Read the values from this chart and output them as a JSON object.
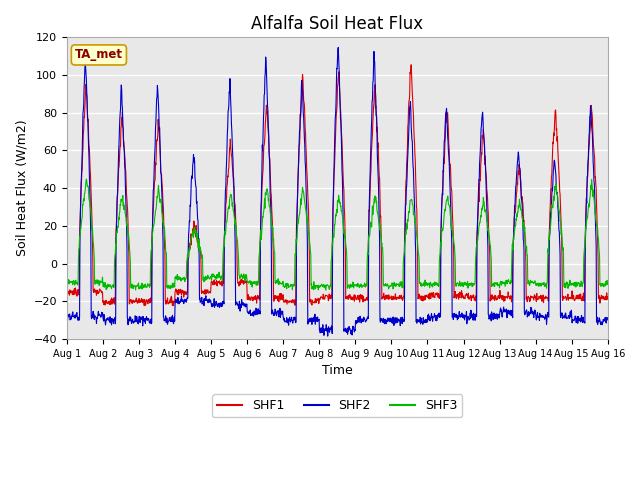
{
  "title": "Alfalfa Soil Heat Flux",
  "xlabel": "Time",
  "ylabel": "Soil Heat Flux (W/m2)",
  "ylim": [
    -40,
    120
  ],
  "background_color": "#ffffff",
  "plot_bg_color": "#e8e8e8",
  "colors": {
    "SHF1": "#dd0000",
    "SHF2": "#0000cc",
    "SHF3": "#00bb00"
  },
  "tick_labels": [
    "Aug 1",
    "Aug 2",
    "Aug 3",
    "Aug 4",
    "Aug 5",
    "Aug 6",
    "Aug 7",
    "Aug 8",
    "Aug 9",
    "Aug 10",
    "Aug 11",
    "Aug 12",
    "Aug 13",
    "Aug 14",
    "Aug 15",
    "Aug 16"
  ],
  "yticks": [
    -40,
    -20,
    0,
    20,
    40,
    60,
    80,
    100,
    120
  ],
  "n_days": 15,
  "pts_per_day": 96,
  "shf1_peaks": [
    95,
    80,
    75,
    21,
    65,
    85,
    100,
    103,
    95,
    107,
    82,
    70,
    52,
    83,
    83
  ],
  "shf2_peaks": [
    110,
    93,
    95,
    58,
    97,
    110,
    99,
    118,
    112,
    85,
    85,
    83,
    60,
    56,
    84
  ],
  "shf3_peaks": [
    45,
    37,
    40,
    18,
    37,
    40,
    40,
    36,
    36,
    35,
    35,
    33,
    33,
    42,
    42
  ],
  "shf1_troughs": [
    -15,
    -20,
    -20,
    -15,
    -10,
    -18,
    -20,
    -18,
    -18,
    -18,
    -17,
    -18,
    -18,
    -18,
    -18
  ],
  "shf2_troughs": [
    -28,
    -30,
    -30,
    -20,
    -22,
    -26,
    -30,
    -35,
    -30,
    -30,
    -28,
    -28,
    -26,
    -28,
    -30
  ],
  "shf3_troughs": [
    -10,
    -12,
    -12,
    -8,
    -7,
    -10,
    -12,
    -12,
    -12,
    -11,
    -11,
    -11,
    -10,
    -11,
    -11
  ],
  "ta_met_box_color": "#ffffcc",
  "ta_met_box_edge": "#cc9900",
  "ta_met_text_color": "#880000"
}
